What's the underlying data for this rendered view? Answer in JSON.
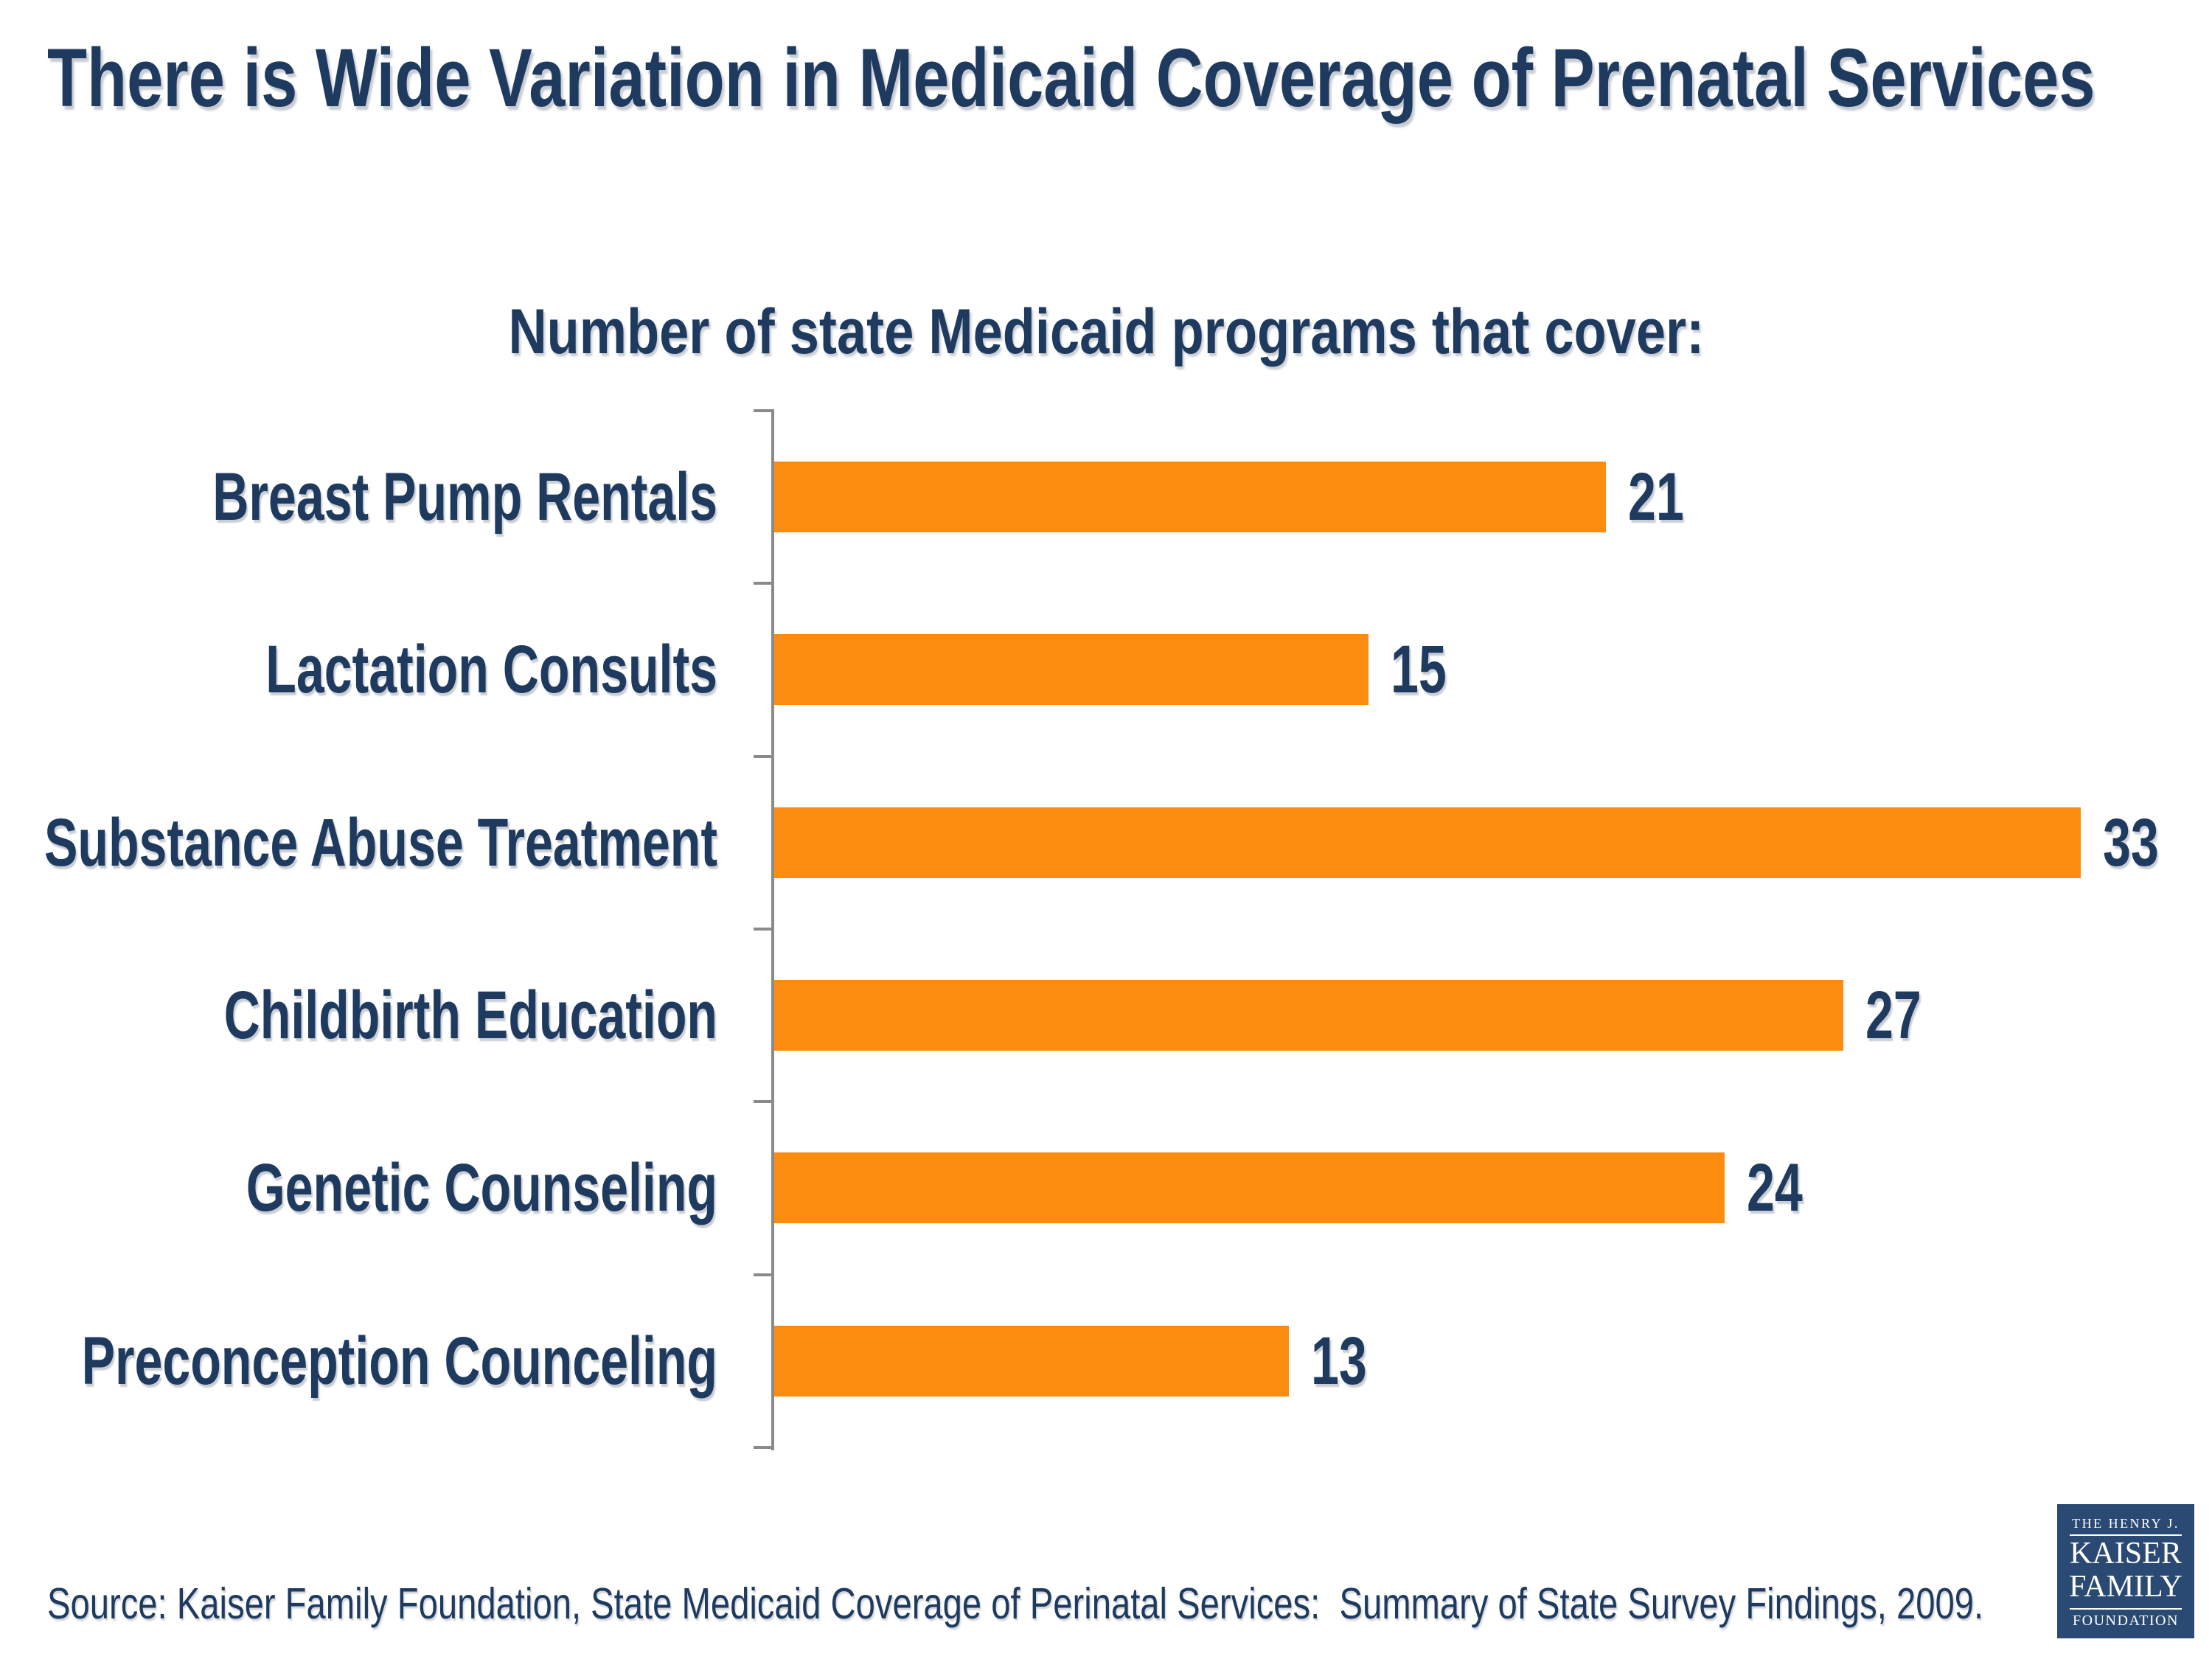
{
  "slide": {
    "title": "There is Wide Variation in Medicaid Coverage of Prenatal Services",
    "source": "Source: Kaiser Family Foundation, State Medicaid Coverage of Perinatal Services:  Summary of State Survey Findings, 2009."
  },
  "chart_data": {
    "type": "bar",
    "orientation": "horizontal",
    "title": "Number of state Medicaid programs that cover:",
    "categories": [
      "Breast Pump Rentals",
      "Lactation Consults",
      "Substance Abuse Treatment",
      "Childbirth Education",
      "Genetic Counseling",
      "Preconception Counceling"
    ],
    "values": [
      21,
      15,
      33,
      27,
      24,
      13
    ],
    "xlim": [
      0,
      33
    ],
    "grid": false,
    "legend": false,
    "value_labels_shown": true,
    "bar_color": "#FB8C0F",
    "axis_color": "#8A8A8A"
  },
  "logo": {
    "line1": "THE HENRY J.",
    "line2": "KAISER",
    "line3": "FAMILY",
    "line4": "FOUNDATION"
  },
  "colors": {
    "text_navy": "#1E3A5F",
    "bar_orange": "#FB8C0F",
    "axis_gray": "#8A8A8A",
    "logo_bg": "#2B4A73",
    "background": "#FFFFFF"
  }
}
